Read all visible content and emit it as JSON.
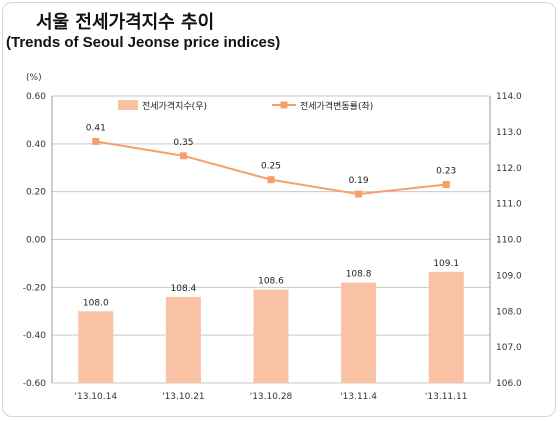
{
  "title_ko": "서울 전세가격지수 추이",
  "title_en": "(Trends of Seoul Jeonse price indices)",
  "colors": {
    "bar": "#f9c2a5",
    "line": "#f5a06a",
    "grid": "#c9c9c9",
    "axis_text": "#333333",
    "label_text": "#222222"
  },
  "chart_data": {
    "type": "bar+line",
    "categories": [
      "'13.10.14",
      "'13.10.21",
      "'13.10.28",
      "'13.11.4",
      "'13.11.11"
    ],
    "series": [
      {
        "name": "전세가격지수(우)",
        "type": "bar",
        "axis": "right",
        "values": [
          108.0,
          108.4,
          108.6,
          108.8,
          109.1
        ],
        "labels": [
          "108.0",
          "108.4",
          "108.6",
          "108.8",
          "109.1"
        ]
      },
      {
        "name": "전세가격변동률(좌)",
        "type": "line",
        "axis": "left",
        "values": [
          0.41,
          0.35,
          0.25,
          0.19,
          0.23
        ],
        "labels": [
          "0.41",
          "0.35",
          "0.25",
          "0.19",
          "0.23"
        ]
      }
    ],
    "left_axis": {
      "unit": "(%)",
      "ylim": [
        -0.6,
        0.6
      ],
      "ticks": [
        0.6,
        0.4,
        0.2,
        0.0,
        -0.2,
        -0.4,
        -0.6
      ],
      "tick_labels": [
        "0.60",
        "0.40",
        "0.20",
        "0.00",
        "-0.20",
        "-0.40",
        "-0.60"
      ]
    },
    "right_axis": {
      "ylim": [
        106.0,
        114.0
      ],
      "ticks": [
        114,
        113,
        112,
        111,
        110,
        109,
        108,
        107,
        106
      ],
      "tick_labels": [
        "114.0",
        "113.0",
        "112.0",
        "111.0",
        "110.0",
        "109.0",
        "108.0",
        "107.0",
        "106.0"
      ]
    },
    "legend_position": "top",
    "grid": "horizontal"
  }
}
